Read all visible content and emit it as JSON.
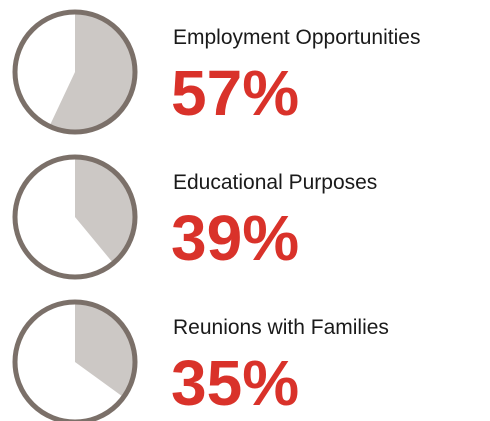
{
  "chart_data": [
    {
      "type": "pie",
      "title": "Employment Opportunities",
      "values": [
        57
      ],
      "value_labels": [
        "57%"
      ],
      "color": "#ccc8c5"
    },
    {
      "type": "pie",
      "title": "Educational Purposes",
      "values": [
        39
      ],
      "value_labels": [
        "39%"
      ],
      "color": "#ccc8c5"
    },
    {
      "type": "pie",
      "title": "Reunions with Families",
      "values": [
        35
      ],
      "value_labels": [
        "35%"
      ],
      "color": "#ccc8c5"
    }
  ]
}
